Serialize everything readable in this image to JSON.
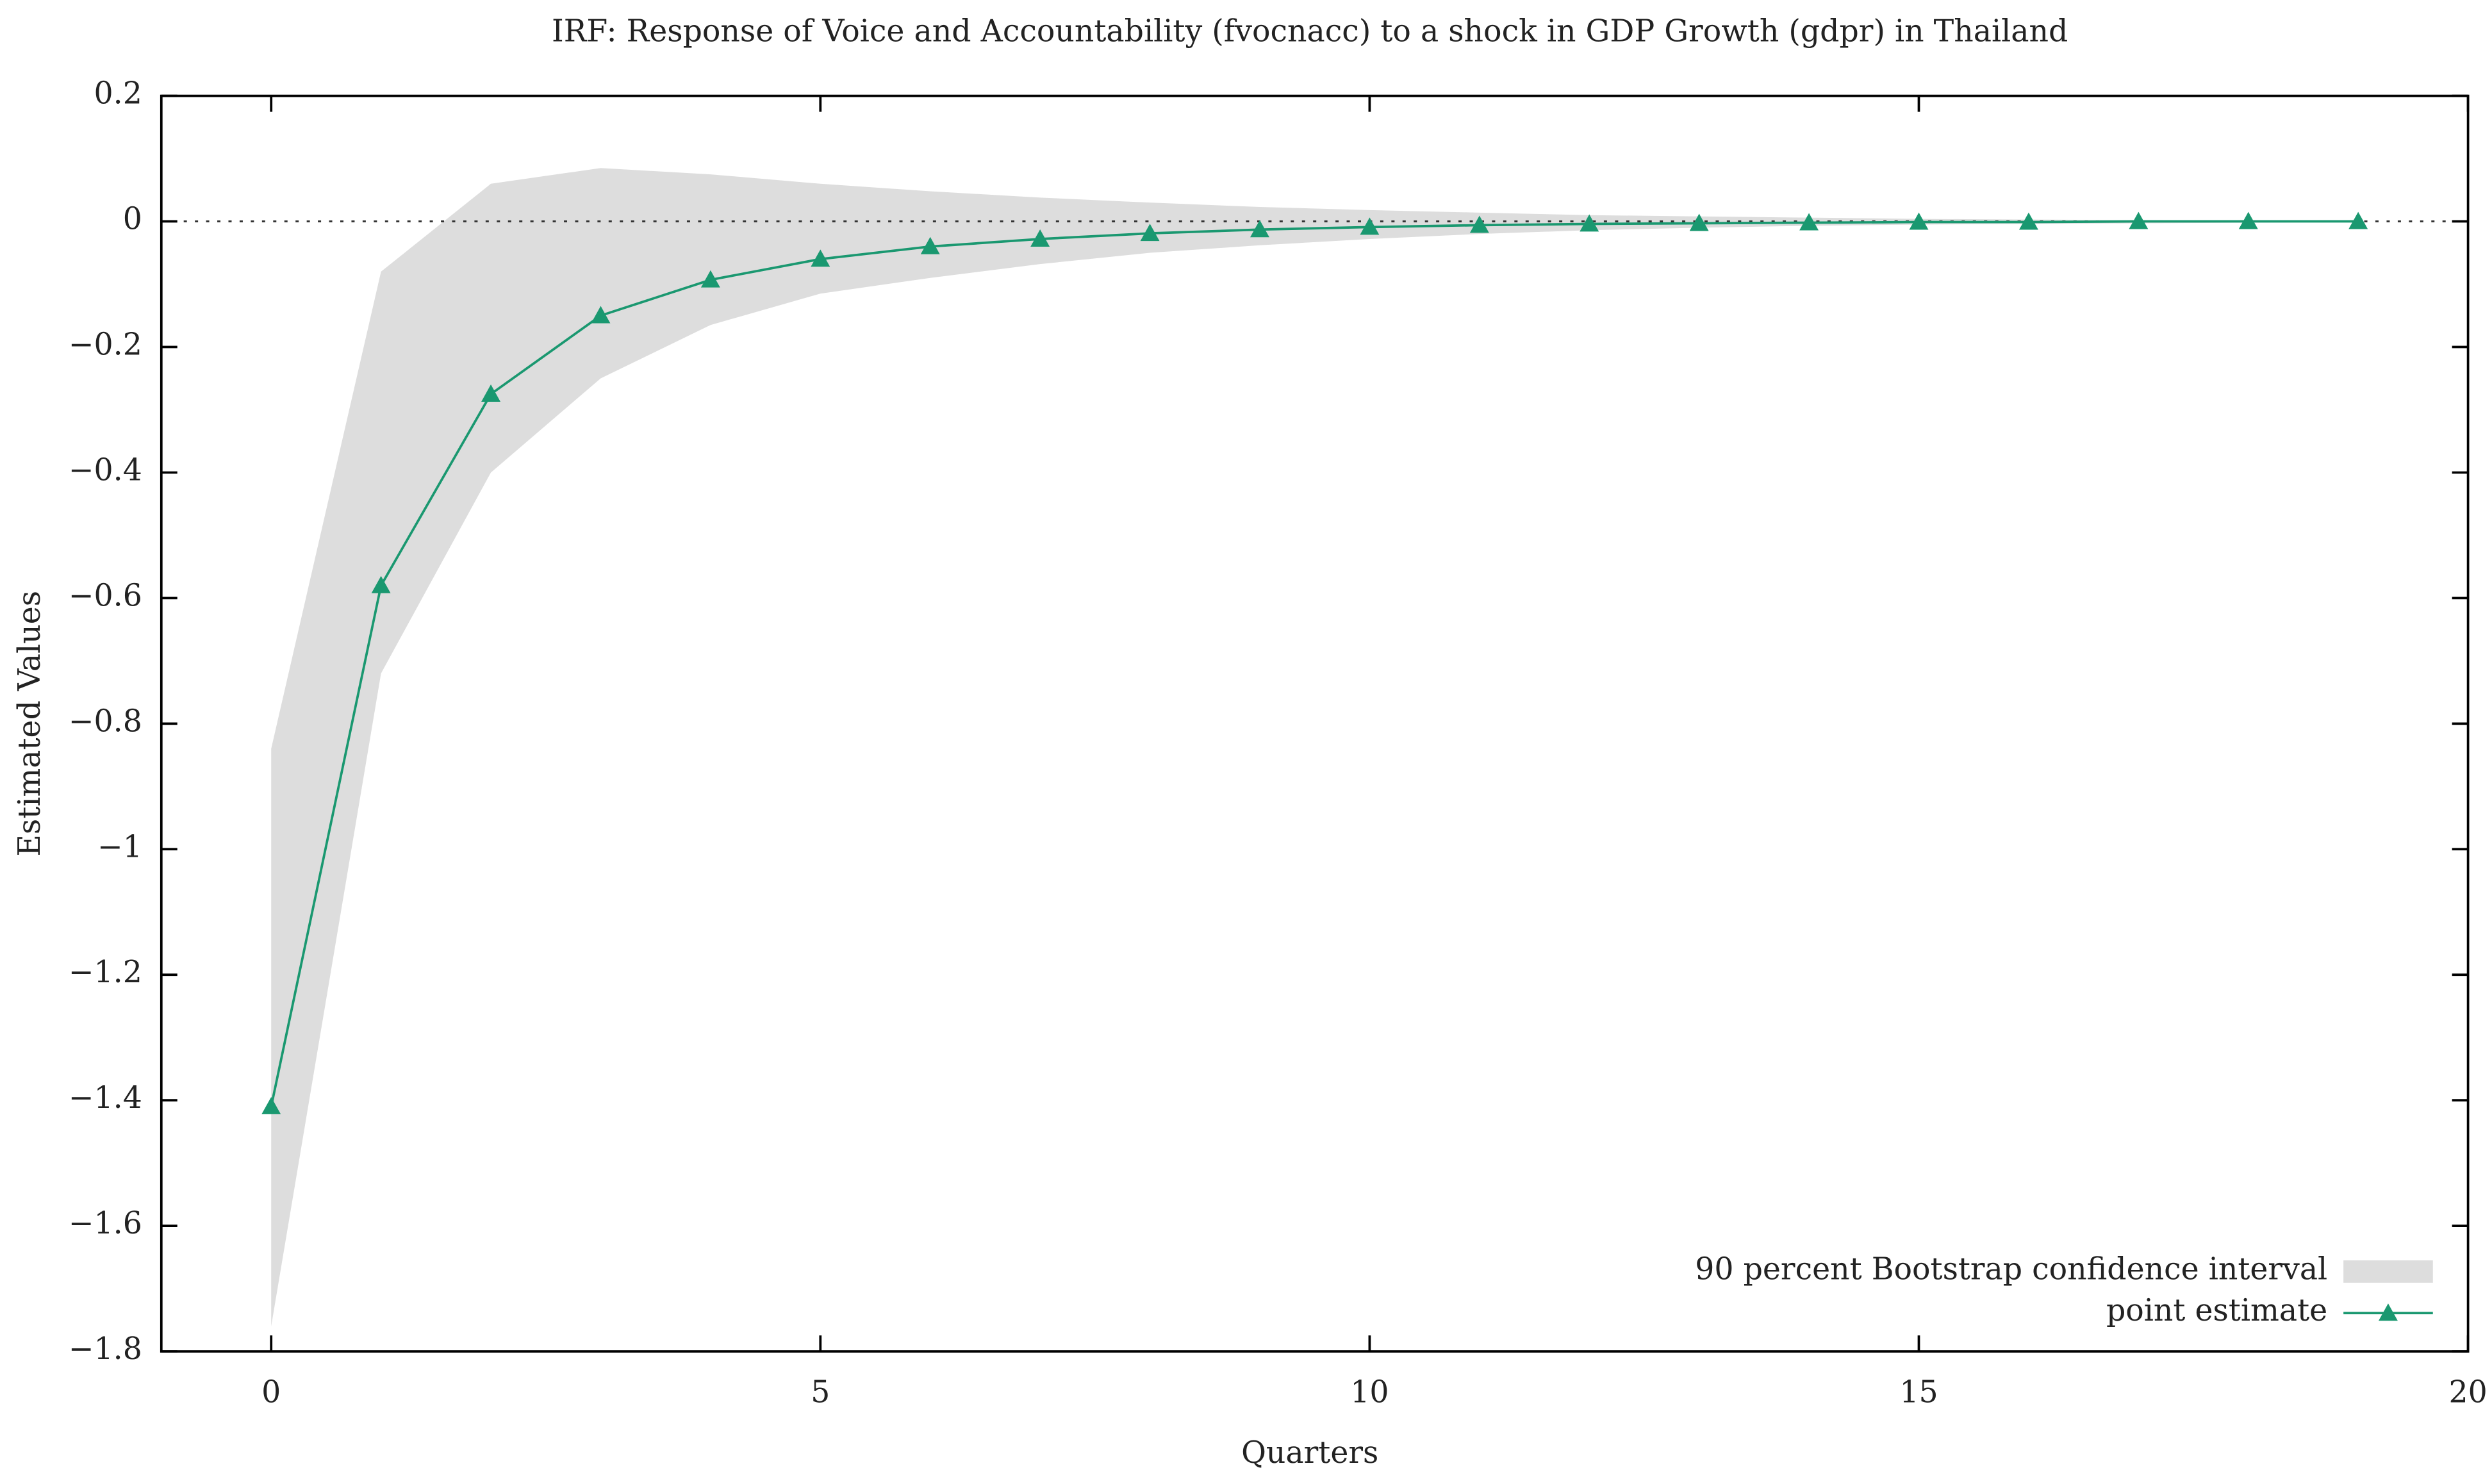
{
  "chart_data": {
    "type": "line",
    "title": "IRF: Response of Voice and Accountability (fvocnacc) to a shock in GDP Growth (gdpr) in Thailand",
    "x_label": "Quarters",
    "y_label": "Estimated Values",
    "x": [
      0,
      1,
      2,
      3,
      4,
      5,
      6,
      7,
      8,
      9,
      10,
      11,
      12,
      13,
      14,
      15,
      16,
      17,
      18,
      19
    ],
    "band": {
      "name": "90 percent Bootstrap confidence interval",
      "color": "#dddddd",
      "lower": [
        -1.76,
        -0.72,
        -0.4,
        -0.25,
        -0.165,
        -0.115,
        -0.09,
        -0.068,
        -0.05,
        -0.038,
        -0.028,
        -0.02,
        -0.014,
        -0.01,
        -0.007,
        -0.005,
        -0.004,
        -0.003,
        -0.002,
        -0.001
      ],
      "upper": [
        -0.84,
        -0.08,
        0.06,
        0.085,
        0.075,
        0.06,
        0.048,
        0.038,
        0.03,
        0.023,
        0.018,
        0.014,
        0.01,
        0.008,
        0.006,
        0.004,
        0.003,
        0.002,
        0.001,
        0.001
      ]
    },
    "series": [
      {
        "name": "point estimate",
        "color": "#1a9870",
        "values": [
          -1.41,
          -0.58,
          -0.275,
          -0.15,
          -0.093,
          -0.06,
          -0.04,
          -0.028,
          -0.019,
          -0.013,
          -0.009,
          -0.006,
          -0.004,
          -0.003,
          -0.002,
          -0.001,
          -0.001,
          0,
          0,
          0
        ]
      }
    ],
    "xlim": [
      -1,
      20
    ],
    "xticks": [
      0,
      5,
      10,
      15,
      20
    ],
    "ylim": [
      -1.8,
      0.2
    ],
    "yticks": [
      {
        "value": -1.8,
        "label": "−1.8"
      },
      {
        "value": -1.6,
        "label": "−1.6"
      },
      {
        "value": -1.4,
        "label": "−1.4"
      },
      {
        "value": -1.2,
        "label": "−1.2"
      },
      {
        "value": -1,
        "label": "−1"
      },
      {
        "value": -0.8,
        "label": "−0.8"
      },
      {
        "value": -0.6,
        "label": "−0.6"
      },
      {
        "value": -0.4,
        "label": "−0.4"
      },
      {
        "value": -0.2,
        "label": "−0.2"
      },
      0,
      0.2
    ],
    "zero_line": true,
    "legend": "bottom-right"
  }
}
